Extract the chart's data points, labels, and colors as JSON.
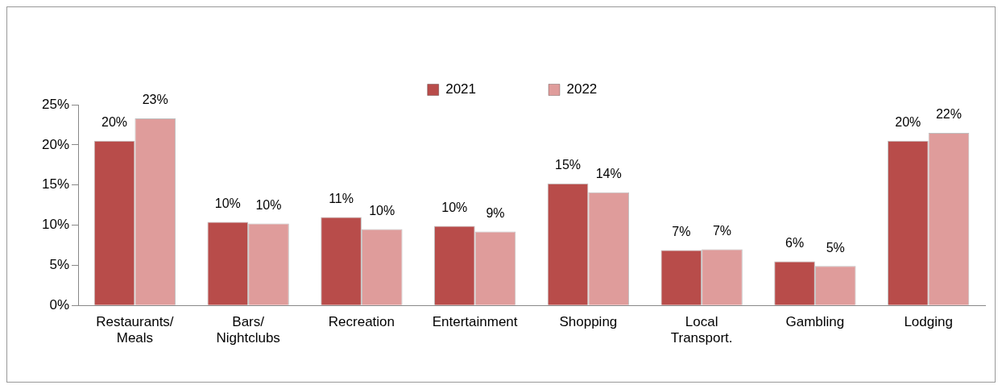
{
  "chart_data": {
    "type": "bar",
    "categories": [
      "Restaurants/ Meals",
      "Bars/ Nightclubs",
      "Recreation",
      "Entertainment",
      "Shopping",
      "Local Transport.",
      "Gambling",
      "Lodging"
    ],
    "series": [
      {
        "name": "2021",
        "color": "#b84c4a",
        "values": [
          20.5,
          10.4,
          11.0,
          9.9,
          15.2,
          6.9,
          5.5,
          20.5
        ],
        "value_labels": [
          "20%",
          "10%",
          "11%",
          "10%",
          "15%",
          "7%",
          "6%",
          "20%"
        ]
      },
      {
        "name": "2022",
        "color": "#df9c9b",
        "values": [
          23.3,
          10.2,
          9.5,
          9.2,
          14.1,
          7.0,
          4.9,
          21.5
        ],
        "value_labels": [
          "23%",
          "10%",
          "10%",
          "9%",
          "14%",
          "7%",
          "5%",
          "22%"
        ]
      }
    ],
    "ylim": [
      0,
      25
    ],
    "yticks": [
      {
        "value": 0,
        "label": "0%"
      },
      {
        "value": 5,
        "label": "5%"
      },
      {
        "value": 10,
        "label": "10%"
      },
      {
        "value": 15,
        "label": "15%"
      },
      {
        "value": 20,
        "label": "20%"
      },
      {
        "value": 25,
        "label": "25%"
      }
    ],
    "grid": false,
    "legend": "top"
  }
}
